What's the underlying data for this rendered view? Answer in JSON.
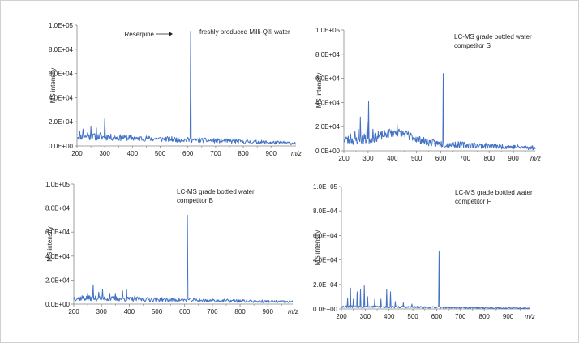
{
  "chart_data": [
    {
      "type": "line",
      "ylabel": "MS intensity",
      "xlabel": "m/z",
      "xlim": [
        200,
        990
      ],
      "ylim": [
        0,
        100000
      ],
      "xticks": [
        "200",
        "300",
        "400",
        "500",
        "600",
        "700",
        "800",
        "900"
      ],
      "yticks": [
        "0.0E+00",
        "2.0E+04",
        "4.0E+04",
        "6.0E+04",
        "8.0E+04",
        "1.0E+05"
      ],
      "legend": "none",
      "grid": false,
      "color": "#4472c4",
      "annotations": [
        "freshly produced Milli-Q® water"
      ],
      "arrow_label": "Reserpine",
      "noise": {
        "start": 8000,
        "end": 2200,
        "amp": 6000,
        "seed": 11
      },
      "peaks": [
        [
          210,
          12000
        ],
        [
          222,
          14000
        ],
        [
          238,
          11000
        ],
        [
          250,
          16000
        ],
        [
          262,
          10000
        ],
        [
          270,
          15000
        ],
        [
          283,
          11000
        ],
        [
          300,
          23000
        ],
        [
          312,
          9000
        ],
        [
          330,
          7000
        ],
        [
          360,
          8000
        ],
        [
          420,
          5000
        ],
        [
          470,
          5000
        ],
        [
          609,
          95000
        ]
      ]
    },
    {
      "type": "line",
      "ylabel": "MS intensity",
      "xlabel": "m/z",
      "xlim": [
        200,
        990
      ],
      "ylim": [
        0,
        100000
      ],
      "xticks": [
        "200",
        "300",
        "400",
        "500",
        "600",
        "700",
        "800",
        "900"
      ],
      "yticks": [
        "0.0E+00",
        "2.0E+04",
        "4.0E+04",
        "6.0E+04",
        "8.0E+04",
        "1.0E+05"
      ],
      "legend": "none",
      "grid": false,
      "color": "#4472c4",
      "annotations": [
        "LC-MS grade bottled water",
        "competitor S"
      ],
      "noise": {
        "start": 9000,
        "end": 2500,
        "amp": 8000,
        "seed": 23,
        "hump_center": 420,
        "hump_width": 90,
        "hump_height": 8000
      },
      "peaks": [
        [
          212,
          10000
        ],
        [
          228,
          14000
        ],
        [
          245,
          16000
        ],
        [
          260,
          18000
        ],
        [
          268,
          28000
        ],
        [
          283,
          14000
        ],
        [
          295,
          24000
        ],
        [
          301,
          41000
        ],
        [
          320,
          18000
        ],
        [
          342,
          16000
        ],
        [
          365,
          14000
        ],
        [
          388,
          18000
        ],
        [
          400,
          14000
        ],
        [
          420,
          22000
        ],
        [
          440,
          12000
        ],
        [
          470,
          9000
        ],
        [
          609,
          64000
        ]
      ]
    },
    {
      "type": "line",
      "ylabel": "MS intensity",
      "xlabel": "m/z",
      "xlim": [
        200,
        990
      ],
      "ylim": [
        0,
        100000
      ],
      "xticks": [
        "200",
        "300",
        "400",
        "500",
        "600",
        "700",
        "800",
        "900"
      ],
      "yticks": [
        "0.0E+00",
        "2.0E+04",
        "4.0E+04",
        "6.0E+04",
        "8.0E+04",
        "1.0E+05"
      ],
      "legend": "none",
      "grid": false,
      "color": "#4472c4",
      "annotations": [
        "LC-MS grade bottled water",
        "competitor B"
      ],
      "noise": {
        "start": 5000,
        "end": 1800,
        "amp": 4500,
        "seed": 37
      },
      "peaks": [
        [
          230,
          7000
        ],
        [
          250,
          9000
        ],
        [
          270,
          16000
        ],
        [
          290,
          10000
        ],
        [
          303,
          12000
        ],
        [
          330,
          9000
        ],
        [
          350,
          9000
        ],
        [
          375,
          11000
        ],
        [
          390,
          12000
        ],
        [
          420,
          7000
        ],
        [
          609,
          74000
        ]
      ]
    },
    {
      "type": "line",
      "ylabel": "MS intensity",
      "xlabel": "m/z",
      "xlim": [
        200,
        990
      ],
      "ylim": [
        0,
        100000
      ],
      "xticks": [
        "200",
        "300",
        "400",
        "500",
        "600",
        "700",
        "800",
        "900"
      ],
      "yticks": [
        "0.0E+00",
        "2.0E+04",
        "4.0E+04",
        "6.0E+04",
        "8.0E+04",
        "1.0E+05"
      ],
      "legend": "none",
      "grid": false,
      "color": "#4472c4",
      "annotations": [
        "LC-MS grade bottled water",
        "competitor F"
      ],
      "noise": {
        "start": 2000,
        "end": 500,
        "amp": 2000,
        "seed": 53
      },
      "peaks": [
        [
          225,
          9000
        ],
        [
          238,
          17000
        ],
        [
          250,
          8000
        ],
        [
          265,
          14000
        ],
        [
          280,
          16000
        ],
        [
          295,
          19000
        ],
        [
          310,
          10000
        ],
        [
          340,
          8000
        ],
        [
          365,
          8000
        ],
        [
          390,
          16000
        ],
        [
          405,
          14000
        ],
        [
          425,
          6000
        ],
        [
          460,
          5000
        ],
        [
          495,
          4000
        ],
        [
          609,
          47000
        ]
      ]
    }
  ]
}
